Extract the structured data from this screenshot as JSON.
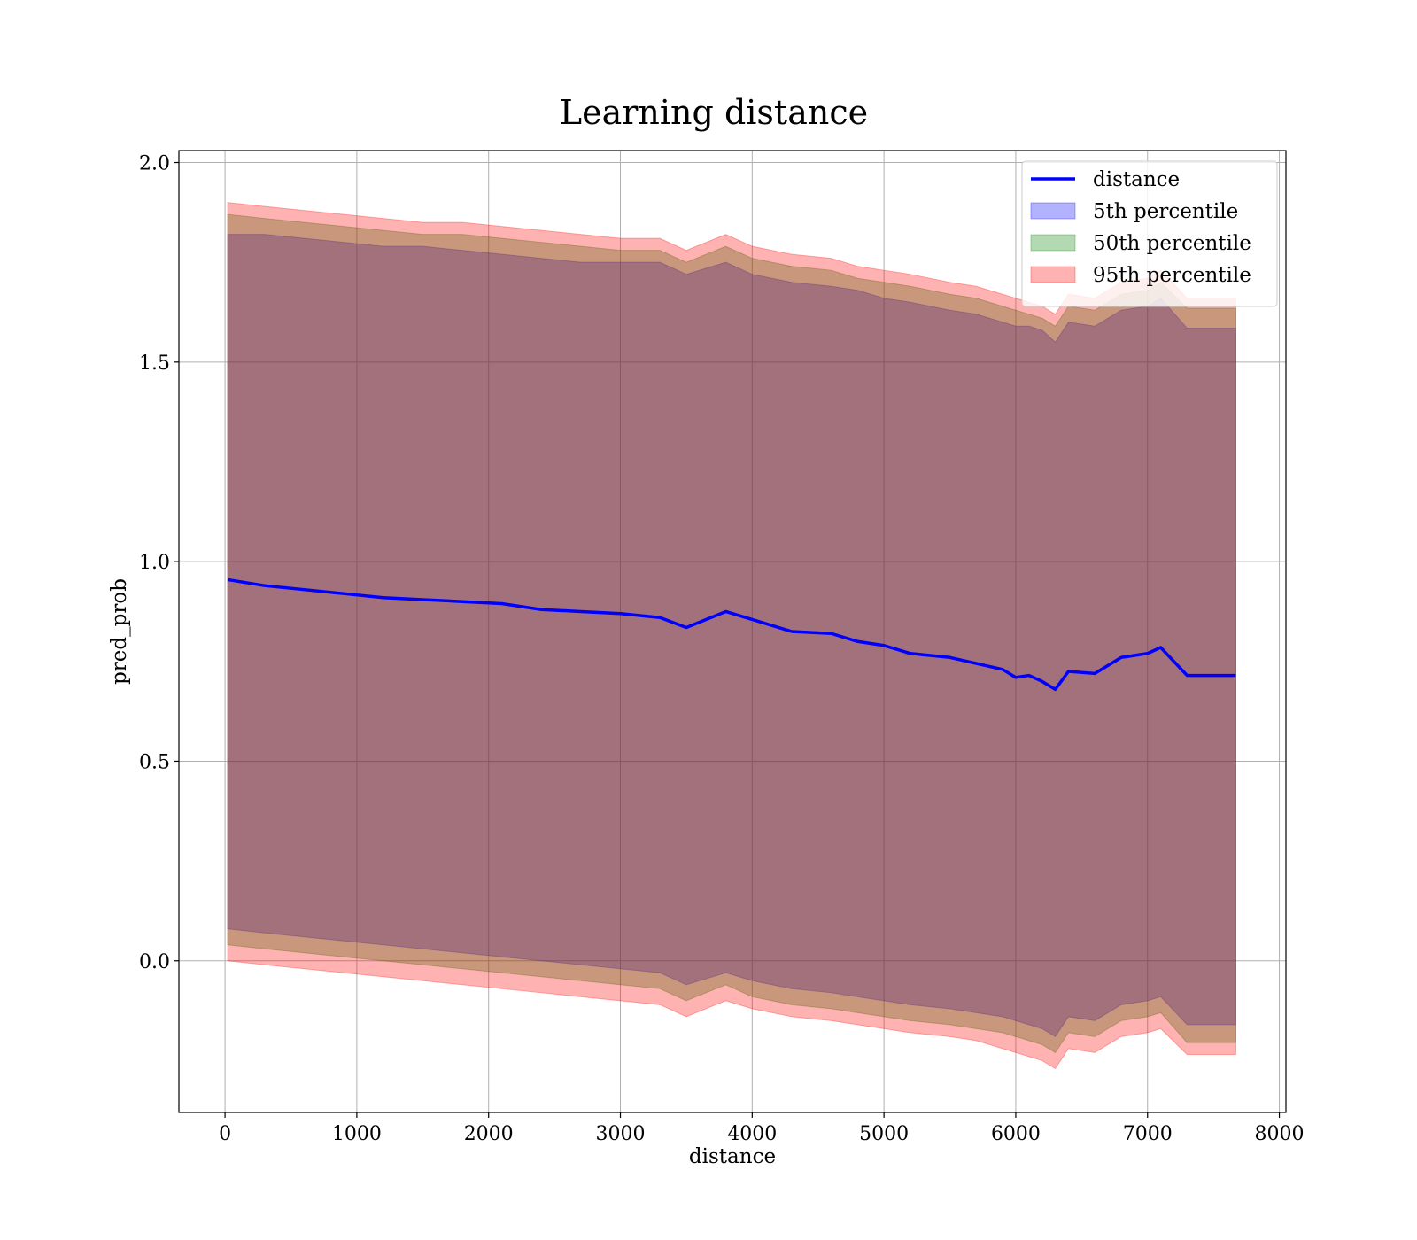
{
  "chart_data": {
    "type": "line",
    "title": "Learning distance",
    "xlabel": "distance",
    "ylabel": "pred_prob",
    "xlim": [
      -350,
      8050
    ],
    "ylim": [
      -0.38,
      2.03
    ],
    "xticks": [
      0,
      1000,
      2000,
      3000,
      4000,
      5000,
      6000,
      7000,
      8000
    ],
    "yticks": [
      0.0,
      0.5,
      1.0,
      1.5,
      2.0
    ],
    "xtick_labels": [
      "0",
      "1000",
      "2000",
      "3000",
      "4000",
      "5000",
      "6000",
      "7000",
      "8000"
    ],
    "ytick_labels": [
      "0.0",
      "0.5",
      "1.0",
      "1.5",
      "2.0"
    ],
    "grid": true,
    "legend_position": "top-right",
    "x": [
      20,
      300,
      600,
      900,
      1200,
      1500,
      1800,
      2100,
      2400,
      2700,
      3000,
      3300,
      3500,
      3800,
      4000,
      4300,
      4600,
      4800,
      5000,
      5200,
      5500,
      5700,
      5900,
      6000,
      6100,
      6200,
      6300,
      6400,
      6600,
      6800,
      7000,
      7100,
      7300,
      7500,
      7670
    ],
    "series": [
      {
        "name": "distance",
        "kind": "line",
        "color": "#0000ff",
        "values": [
          0.955,
          0.94,
          0.93,
          0.92,
          0.91,
          0.905,
          0.9,
          0.895,
          0.88,
          0.875,
          0.87,
          0.86,
          0.835,
          0.875,
          0.855,
          0.825,
          0.82,
          0.8,
          0.79,
          0.77,
          0.76,
          0.745,
          0.73,
          0.71,
          0.715,
          0.7,
          0.68,
          0.725,
          0.72,
          0.76,
          0.77,
          0.785,
          0.715,
          0.715,
          0.715
        ]
      },
      {
        "name": "5th percentile",
        "kind": "band",
        "color": "#0000ff",
        "upper": [
          1.82,
          1.82,
          1.81,
          1.8,
          1.79,
          1.79,
          1.78,
          1.77,
          1.76,
          1.75,
          1.75,
          1.75,
          1.72,
          1.75,
          1.72,
          1.7,
          1.69,
          1.68,
          1.66,
          1.65,
          1.63,
          1.62,
          1.6,
          1.59,
          1.59,
          1.58,
          1.55,
          1.6,
          1.59,
          1.63,
          1.64,
          1.66,
          1.585,
          1.585,
          1.585
        ],
        "lower": [
          0.08,
          0.07,
          0.06,
          0.05,
          0.04,
          0.03,
          0.02,
          0.01,
          0.0,
          -0.01,
          -0.02,
          -0.03,
          -0.06,
          -0.03,
          -0.05,
          -0.07,
          -0.08,
          -0.09,
          -0.1,
          -0.11,
          -0.12,
          -0.13,
          -0.14,
          -0.15,
          -0.16,
          -0.17,
          -0.19,
          -0.14,
          -0.15,
          -0.11,
          -0.1,
          -0.09,
          -0.16,
          -0.16,
          -0.16
        ]
      },
      {
        "name": "50th percentile",
        "kind": "band",
        "color": "#008000",
        "upper": [
          1.87,
          1.86,
          1.85,
          1.84,
          1.83,
          1.82,
          1.82,
          1.81,
          1.8,
          1.79,
          1.78,
          1.78,
          1.75,
          1.79,
          1.76,
          1.74,
          1.73,
          1.71,
          1.7,
          1.69,
          1.67,
          1.66,
          1.64,
          1.63,
          1.62,
          1.61,
          1.59,
          1.64,
          1.63,
          1.67,
          1.68,
          1.7,
          1.635,
          1.635,
          1.635
        ],
        "lower": [
          0.04,
          0.03,
          0.02,
          0.01,
          0.0,
          -0.01,
          -0.02,
          -0.03,
          -0.04,
          -0.05,
          -0.06,
          -0.07,
          -0.1,
          -0.06,
          -0.09,
          -0.11,
          -0.12,
          -0.13,
          -0.14,
          -0.15,
          -0.16,
          -0.17,
          -0.18,
          -0.19,
          -0.2,
          -0.21,
          -0.23,
          -0.18,
          -0.19,
          -0.15,
          -0.14,
          -0.13,
          -0.205,
          -0.205,
          -0.205
        ]
      },
      {
        "name": "95th percentile",
        "kind": "band",
        "color": "#ff0000",
        "upper": [
          1.9,
          1.89,
          1.88,
          1.87,
          1.86,
          1.85,
          1.85,
          1.84,
          1.83,
          1.82,
          1.81,
          1.81,
          1.78,
          1.82,
          1.79,
          1.77,
          1.76,
          1.74,
          1.73,
          1.72,
          1.7,
          1.69,
          1.67,
          1.66,
          1.65,
          1.64,
          1.62,
          1.67,
          1.66,
          1.7,
          1.71,
          1.73,
          1.66,
          1.66,
          1.66
        ],
        "lower": [
          0.0,
          -0.01,
          -0.02,
          -0.03,
          -0.04,
          -0.05,
          -0.06,
          -0.07,
          -0.08,
          -0.09,
          -0.1,
          -0.11,
          -0.14,
          -0.1,
          -0.12,
          -0.14,
          -0.15,
          -0.16,
          -0.17,
          -0.18,
          -0.19,
          -0.2,
          -0.22,
          -0.23,
          -0.24,
          -0.25,
          -0.27,
          -0.22,
          -0.23,
          -0.19,
          -0.18,
          -0.17,
          -0.235,
          -0.235,
          -0.235
        ]
      }
    ]
  }
}
